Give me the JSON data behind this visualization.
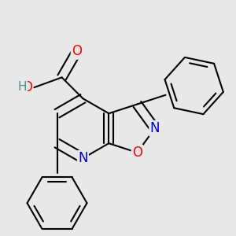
{
  "background_color": "#e8e8e8",
  "bond_color": "#000000",
  "bond_lw": 1.5,
  "dbo": 0.018,
  "atom_colors": {
    "N": "#0000cc",
    "O": "#ff0000",
    "H": "#4a9090",
    "C": "#000000"
  },
  "fs": 12,
  "figsize": [
    3.0,
    3.0
  ],
  "dpi": 100
}
